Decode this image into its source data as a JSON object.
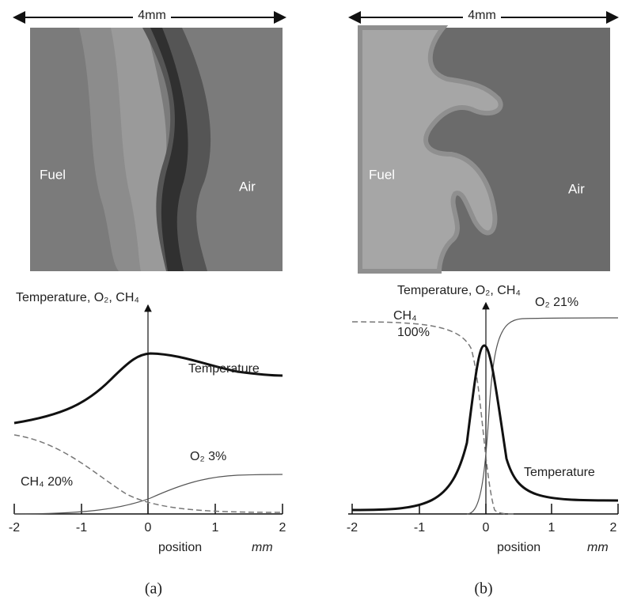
{
  "panels": [
    {
      "scale_label": "4mm",
      "left_label": "Fuel",
      "right_label": "Air",
      "plot_title": "Temperature, O₂, CH₄",
      "curve_labels": [
        "Temperature",
        "O₂  3%",
        "CH₄  20%"
      ],
      "ticks": [
        -2,
        -1,
        0,
        1,
        2
      ],
      "x_label": "position",
      "x_unit": "mm",
      "caption": "(a)"
    },
    {
      "scale_label": "4mm",
      "left_label": "Fuel",
      "right_label": "Air",
      "plot_title": "Temperature, O₂, CH₄",
      "curve_labels": [
        "CH₄",
        "100%",
        "O₂  21%",
        "Temperature"
      ],
      "ticks": [
        -2,
        -1,
        0,
        1,
        2
      ],
      "x_label": "position",
      "x_unit": "mm",
      "caption": "(b)"
    }
  ]
}
